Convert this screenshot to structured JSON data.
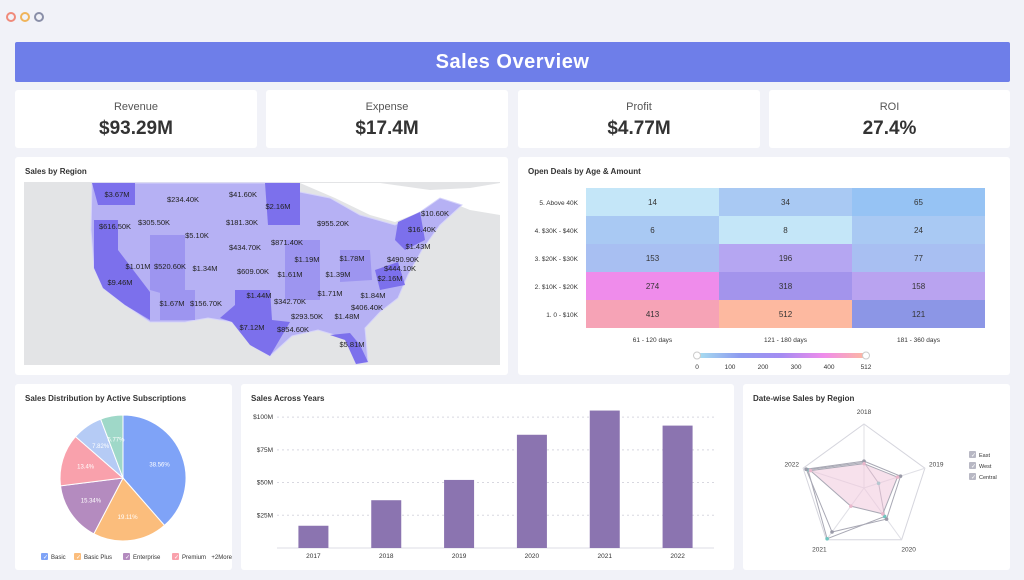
{
  "window": {
    "dot_colors": [
      "#f08a7a",
      "#f0b45a",
      "#8a8fa8"
    ]
  },
  "header": {
    "title": "Sales Overview",
    "color": "#6e7ee9"
  },
  "kpis": [
    {
      "label": "Revenue",
      "value": "$93.29M"
    },
    {
      "label": "Expense",
      "value": "$17.4M"
    },
    {
      "label": "Profit",
      "value": "$4.77M"
    },
    {
      "label": "ROI",
      "value": "27.4%"
    }
  ],
  "map": {
    "title": "Sales by Region",
    "labels": [
      "$3.67M",
      "$234.40K",
      "$41.60K",
      "$2.16M",
      "$616.50K",
      "$305.50K",
      "$181.30K",
      "$955.20K",
      "$10.60K",
      "$5.10K",
      "$16.40K",
      "$871.40K",
      "$434.70K",
      "$1.43M",
      "$1.19M",
      "$1.78M",
      "$490.90K",
      "$1.01M",
      "$520.60K",
      "$1.34M",
      "$609.00K",
      "$1.61M",
      "$1.39M",
      "$444.10K",
      "$9.46M",
      "$2.16M",
      "$1.44M",
      "$1.71M",
      "$1.84M",
      "$342.70K",
      "$1.67M",
      "$156.70K",
      "$406.40K",
      "$293.50K",
      "$1.48M",
      "$7.12M",
      "$854.60K",
      "$5.81M"
    ]
  },
  "chart_data": [
    {
      "type": "heatmap",
      "title": "Open Deals by Age & Amount",
      "rows": [
        "5. Above 40K",
        "4. $30K - $40K",
        "3. $20K - $30K",
        "2. $10K - $20K",
        "1. 0 - $10K"
      ],
      "columns": [
        "61 - 120 days",
        "121 - 180 days",
        "181 - 360 days"
      ],
      "values": [
        [
          14,
          34,
          65
        ],
        [
          6,
          8,
          24
        ],
        [
          153,
          196,
          77
        ],
        [
          274,
          318,
          158
        ],
        [
          413,
          512,
          121
        ]
      ],
      "colors": [
        [
          "#c4e6f8",
          "#a9c9f3",
          "#96c3f4"
        ],
        [
          "#a9c9f3",
          "#c4e6f8",
          "#a9c9f3"
        ],
        [
          "#a8bff2",
          "#b5a6f2",
          "#a8bff2"
        ],
        [
          "#ef8ceb",
          "#a394ec",
          "#b9a3f0"
        ],
        [
          "#f6a3b6",
          "#fdb9a0",
          "#8c96e6"
        ]
      ],
      "legend_ticks": [
        "0",
        "100",
        "200",
        "300",
        "400",
        "512"
      ],
      "range": [
        0,
        512
      ]
    },
    {
      "type": "pie",
      "title": "Sales Distribution by Active Subscriptions",
      "slices": [
        {
          "name": "Basic",
          "value": 38.56,
          "label": "38.56%",
          "color": "#7fa3f7"
        },
        {
          "name": "Basic Plus",
          "value": 19.11,
          "label": "19.11%",
          "color": "#fbbd7c"
        },
        {
          "name": "Enterprise",
          "value": 15.34,
          "label": "15.34%",
          "color": "#b48bbf"
        },
        {
          "name": "Premium",
          "value": 13.4,
          "label": "13.4%",
          "color": "#f9a1ac"
        },
        {
          "name": "",
          "value": 7.82,
          "label": "7.82%",
          "color": "#b5cbf5"
        },
        {
          "name": "",
          "value": 5.77,
          "label": "5.77%",
          "color": "#9fd8c8"
        }
      ],
      "legend": [
        "Basic",
        "Basic Plus",
        "Enterprise",
        "Premium"
      ],
      "legend_more": "+2More"
    },
    {
      "type": "bar",
      "title": "Sales Across Years",
      "categories": [
        "2017",
        "2018",
        "2019",
        "2020",
        "2021",
        "2022"
      ],
      "values": [
        17,
        36.5,
        52,
        86.5,
        105,
        93.5
      ],
      "unit": "$M",
      "yticks": [
        "$25M",
        "$50M",
        "$75M",
        "$100M"
      ],
      "ylim": [
        0,
        110
      ],
      "color": "#8b74b0",
      "grid": true
    },
    {
      "type": "radar",
      "title": "Date-wise Sales by Region",
      "axes": [
        "2018",
        "2019",
        "2020",
        "2021",
        "2022"
      ],
      "series": [
        {
          "name": "East",
          "values": [
            40,
            24,
            55,
            98,
            92
          ],
          "color": "#6fc6c0"
        },
        {
          "name": "West",
          "values": [
            42,
            60,
            60,
            85,
            95
          ],
          "color": "#9a9aa8"
        },
        {
          "name": "Central",
          "values": [
            38,
            55,
            50,
            35,
            88
          ],
          "color": "#e8b7cb"
        }
      ],
      "legend": "right"
    }
  ]
}
